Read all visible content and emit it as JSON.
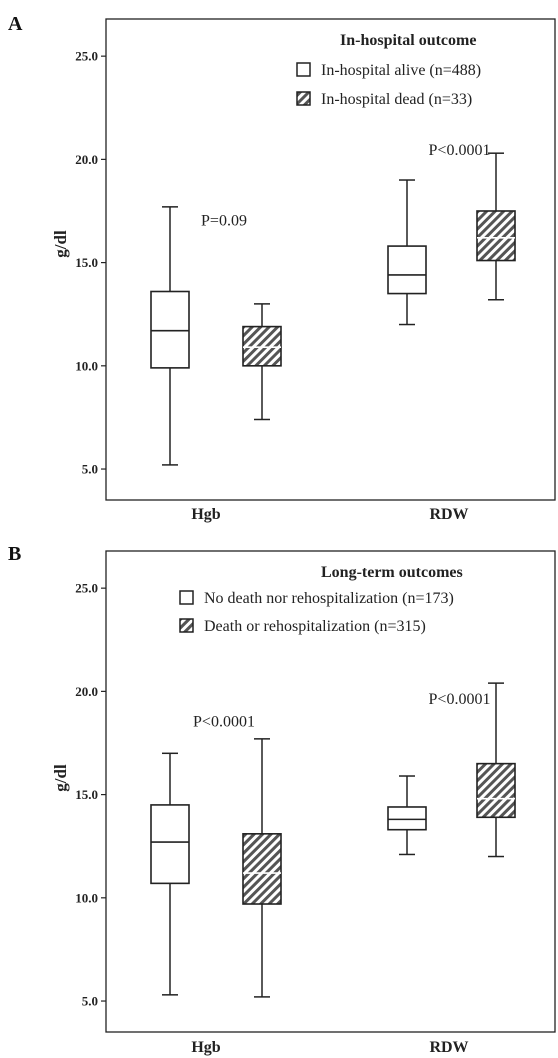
{
  "chart_data": [
    {
      "type": "boxplot",
      "panel_label": "A",
      "ylabel": "g/dl",
      "ylim": [
        3.5,
        26.8
      ],
      "yticks": [
        "5.0",
        "10.0",
        "15.0",
        "20.0",
        "25.0"
      ],
      "ytick_values": [
        5,
        10,
        15,
        20,
        25
      ],
      "categories": [
        "Hgb",
        "RDW"
      ],
      "legend_title": "In-hospital outcome",
      "series": [
        {
          "name": "In-hospital alive (n=488)",
          "pattern": "open",
          "boxes": [
            {
              "min": 5.2,
              "q1": 9.9,
              "median": 11.7,
              "q3": 13.6,
              "max": 17.7
            },
            {
              "min": 12.0,
              "q1": 13.5,
              "median": 14.4,
              "q3": 15.8,
              "max": 19.0
            }
          ]
        },
        {
          "name": "In-hospital dead (n=33)",
          "pattern": "hatched",
          "boxes": [
            {
              "min": 7.4,
              "q1": 10.0,
              "median": 10.9,
              "q3": 11.9,
              "max": 13.0
            },
            {
              "min": 13.2,
              "q1": 15.1,
              "median": 16.2,
              "q3": 17.5,
              "max": 20.3
            }
          ]
        }
      ],
      "pvalues": [
        {
          "category": "Hgb",
          "text": "P=0.09",
          "y": 16.8
        },
        {
          "category": "RDW",
          "text": "P<0.0001",
          "y": 20.2
        }
      ]
    },
    {
      "type": "boxplot",
      "panel_label": "B",
      "ylabel": "g/dl",
      "ylim": [
        3.5,
        26.8
      ],
      "yticks": [
        "5.0",
        "10.0",
        "15.0",
        "20.0",
        "25.0"
      ],
      "ytick_values": [
        5,
        10,
        15,
        20,
        25
      ],
      "categories": [
        "Hgb",
        "RDW"
      ],
      "legend_title": "Long-term outcomes",
      "series": [
        {
          "name": "No death nor rehospitalization (n=173)",
          "pattern": "open",
          "boxes": [
            {
              "min": 5.3,
              "q1": 10.7,
              "median": 12.7,
              "q3": 14.5,
              "max": 17.0
            },
            {
              "min": 12.1,
              "q1": 13.3,
              "median": 13.8,
              "q3": 14.4,
              "max": 15.9
            }
          ]
        },
        {
          "name": "Death or rehospitalization (n=315)",
          "pattern": "hatched",
          "boxes": [
            {
              "min": 5.2,
              "q1": 9.7,
              "median": 11.2,
              "q3": 13.1,
              "max": 17.7
            },
            {
              "min": 12.0,
              "q1": 13.9,
              "median": 14.8,
              "q3": 16.5,
              "max": 20.4
            }
          ]
        }
      ],
      "pvalues": [
        {
          "category": "Hgb",
          "text": "P<0.0001",
          "y": 18.3
        },
        {
          "category": "RDW",
          "text": "P<0.0001",
          "y": 19.4
        }
      ]
    }
  ],
  "colors": {
    "stroke": "#222222",
    "hatch_fill": "#9a9a9a",
    "background": "#ffffff"
  }
}
